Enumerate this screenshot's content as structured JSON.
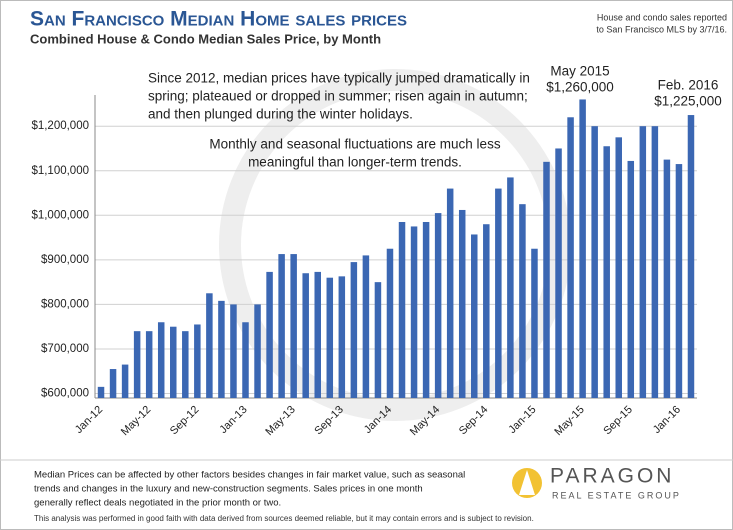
{
  "chart_data": {
    "type": "bar",
    "title": "San Francisco Median Home sales prices",
    "subtitle": "Combined House & Condo Median Sales Price, by Month",
    "note": [
      "House and condo sales reported",
      "to San Francisco MLS by 3/7/16."
    ],
    "annotations": [
      [
        "Since 2012, median prices have typically jumped dramatically in",
        "spring; plateaued or dropped in summer; risen again in autumn;",
        "and then plunged during the winter holidays."
      ],
      [
        "Monthly and seasonal fluctuations are much less",
        "meaningful than longer-term trends."
      ],
      [
        "May 2015",
        "$1,260,000"
      ],
      [
        "Feb. 2016",
        "$1,225,000"
      ]
    ],
    "categories": [
      "Jan-12",
      null,
      null,
      null,
      "May-12",
      null,
      null,
      null,
      "Sep-12",
      null,
      null,
      null,
      "Jan-13",
      null,
      null,
      null,
      "May-13",
      null,
      null,
      null,
      "Sep-13",
      null,
      null,
      null,
      "Jan-14",
      null,
      null,
      null,
      "May-14",
      null,
      null,
      null,
      "Sep-14",
      null,
      null,
      null,
      "Jan-15",
      null,
      null,
      null,
      "May-15",
      null,
      null,
      null,
      "Sep-15",
      null,
      null,
      null,
      "Jan-16",
      null
    ],
    "values": [
      615000,
      655000,
      665000,
      740000,
      740000,
      760000,
      750000,
      740000,
      755000,
      825000,
      808000,
      800000,
      760000,
      800000,
      873000,
      913000,
      913000,
      870000,
      873000,
      860000,
      863000,
      895000,
      910000,
      850000,
      925000,
      985000,
      975000,
      985000,
      1005000,
      1060000,
      1012000,
      957000,
      980000,
      1060000,
      1085000,
      1025000,
      925000,
      1120000,
      1150000,
      1220000,
      1260000,
      1200000,
      1155000,
      1175000,
      1122000,
      1200000,
      1200000,
      1125000,
      1115000,
      1225000
    ],
    "color": "#3b67b3",
    "ylim": [
      590000,
      1270000
    ],
    "yticks": [
      {
        "value": 600000,
        "label": "$600,000"
      },
      {
        "value": 700000,
        "label": "$700,000"
      },
      {
        "value": 800000,
        "label": "$800,000"
      },
      {
        "value": 900000,
        "label": "$900,000"
      },
      {
        "value": 1000000,
        "label": "$1,000,000"
      },
      {
        "value": 1100000,
        "label": "$1,100,000"
      },
      {
        "value": 1200000,
        "label": "$1,200,000"
      }
    ],
    "grid": true,
    "footer": [
      "Median Prices can be affected by other factors besides changes in fair market value, such as seasonal",
      "trends and changes in the luxury and new-construction segments. Sales prices in one month",
      "generally reflect deals negotiated in the prior month or two."
    ],
    "disclaimer": "This analysis was performed in good faith with data derived from sources deemed reliable, but it may contain errors and is subject to revision.",
    "logo": {
      "name": "PARAGON",
      "tagline": "REAL ESTATE GROUP"
    }
  }
}
